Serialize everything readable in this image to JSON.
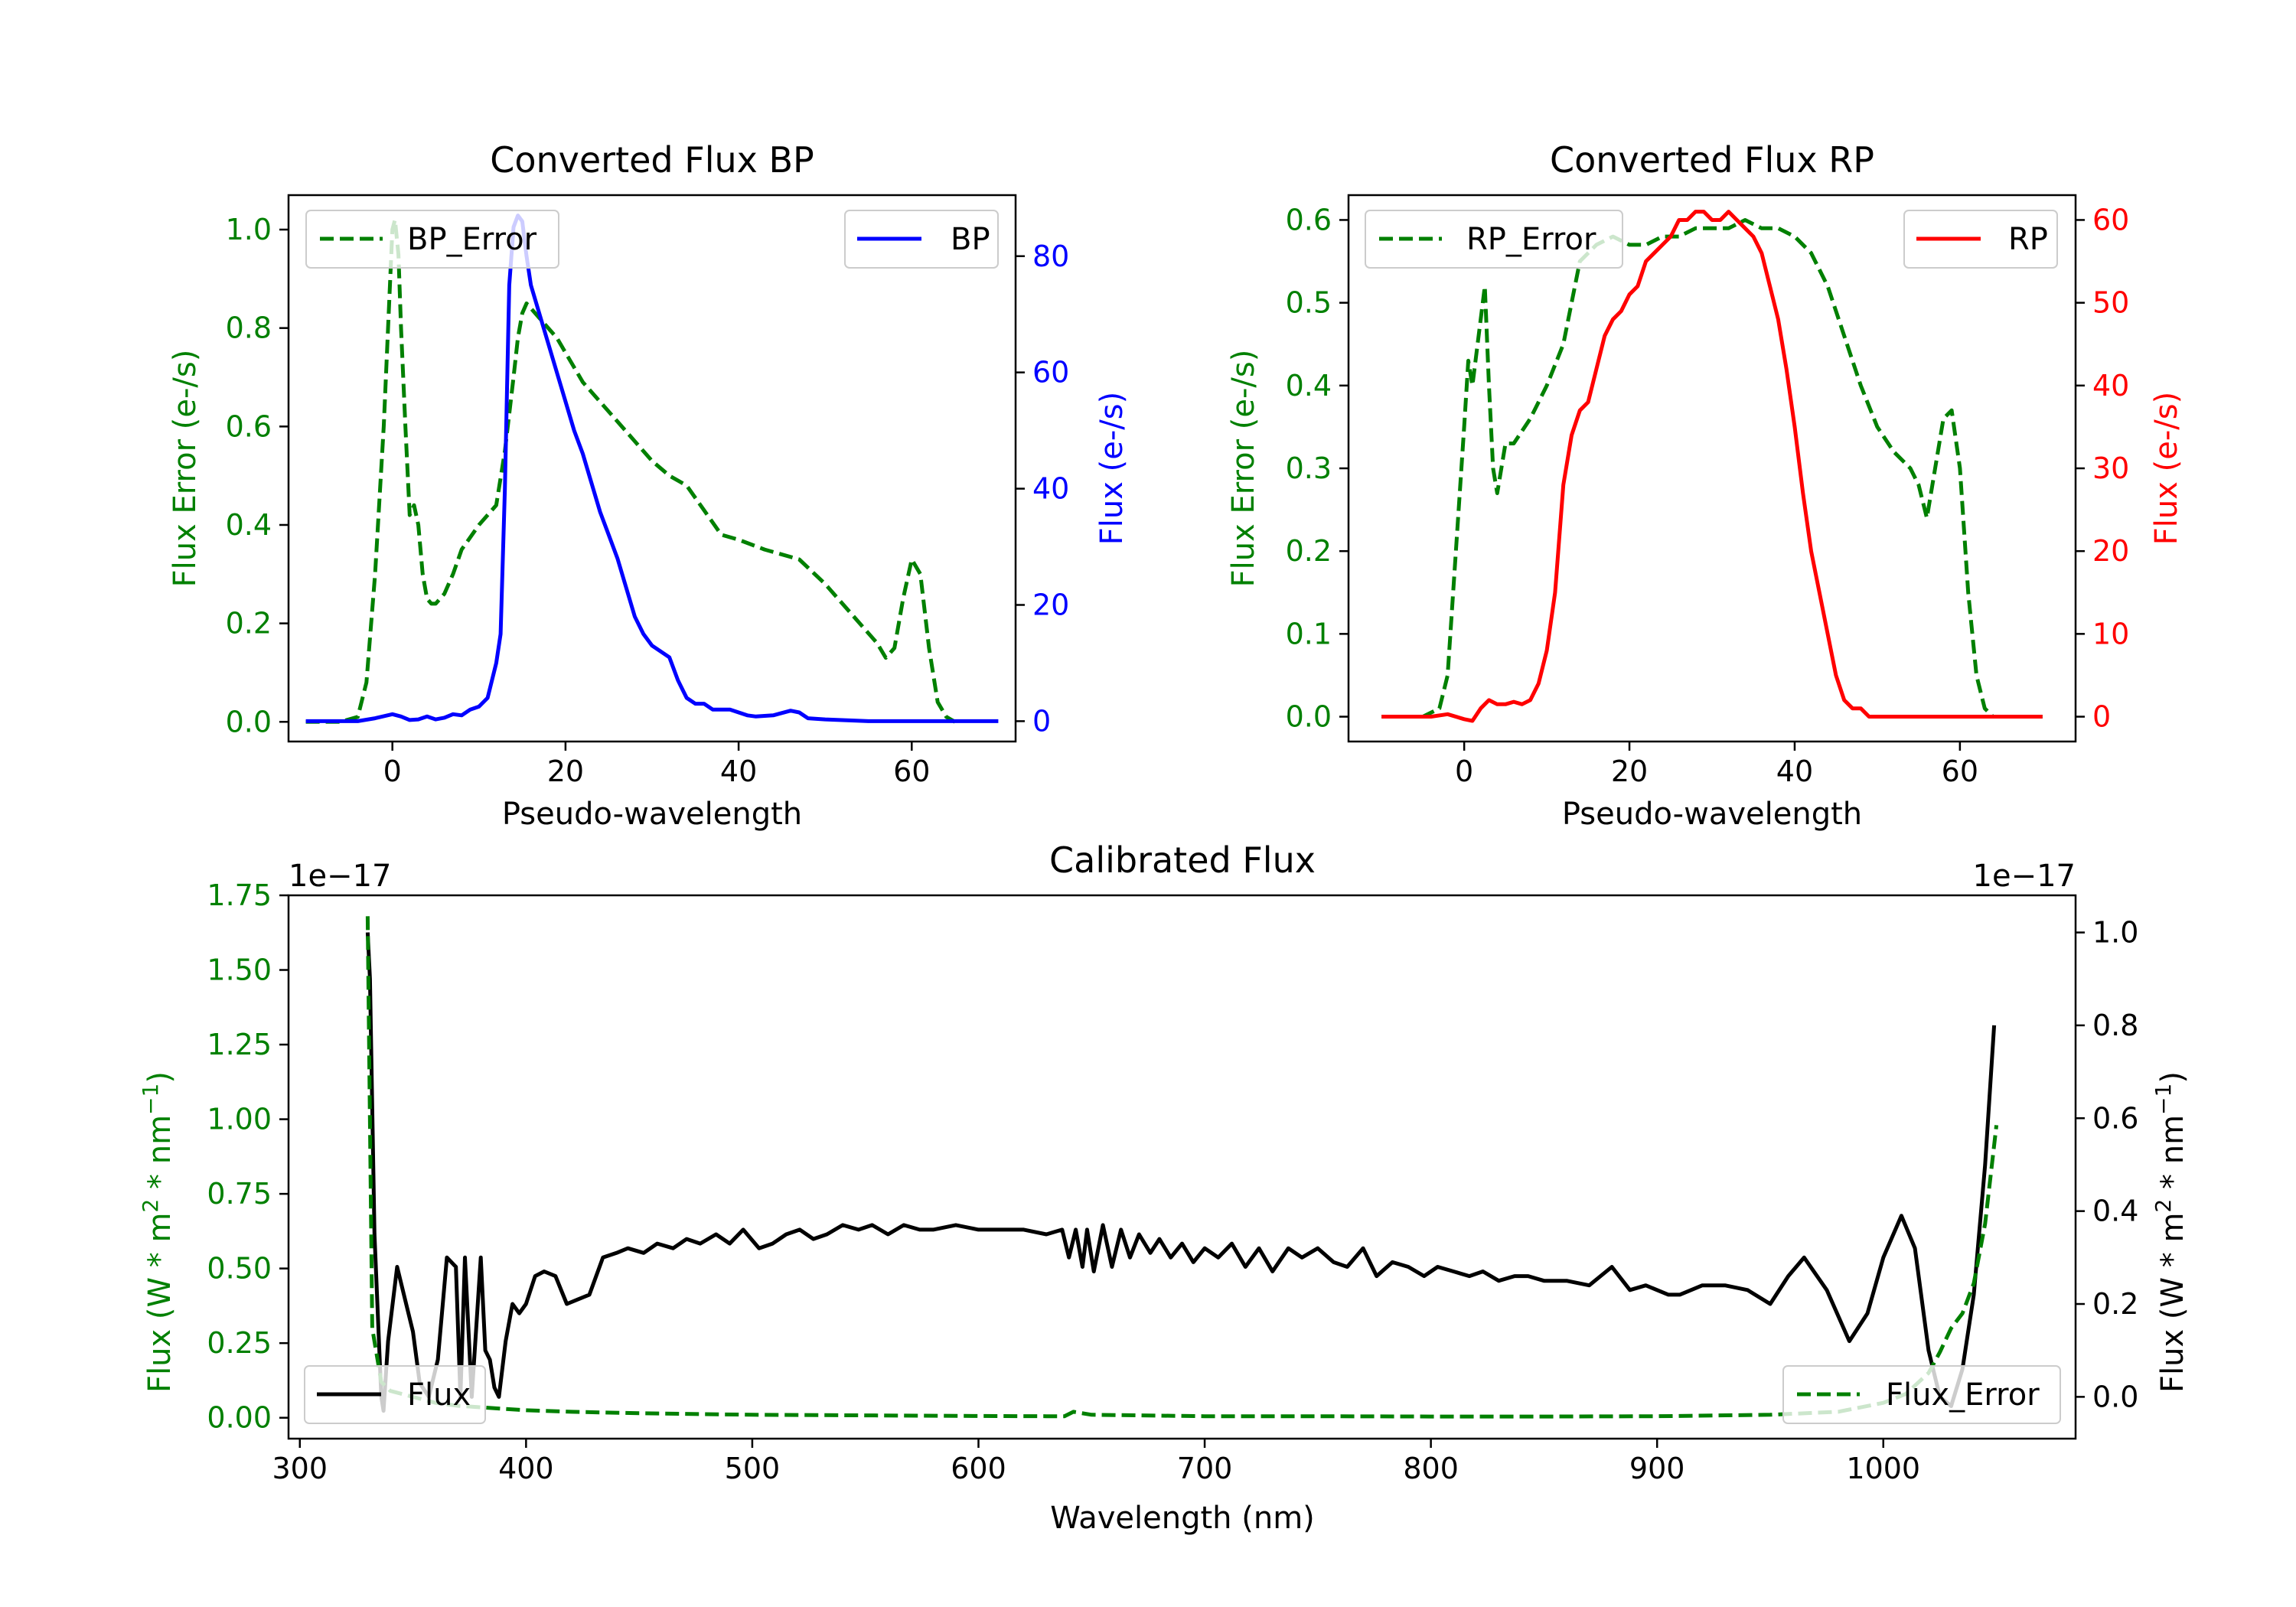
{
  "chart_data": [
    {
      "type": "line",
      "title": "Converted Flux BP",
      "xlabel": "Pseudo-wavelength",
      "ylabel_left": "Flux Error (e-/s)",
      "ylabel_right": "Flux (e-/s)",
      "xlim": [
        -12,
        72
      ],
      "ylim_left": [
        -0.04,
        1.07
      ],
      "ylim_right": [
        -3.5,
        90.5
      ],
      "xticks": [
        0,
        20,
        40,
        60
      ],
      "yticks_left": [
        0.0,
        0.2,
        0.4,
        0.6,
        0.8,
        1.0
      ],
      "yticks_right": [
        0,
        20,
        40,
        60,
        80
      ],
      "legend_left": "top-left",
      "legend_right": "top-right",
      "series": [
        {
          "name": "BP_Error",
          "axis": "left",
          "color": "#008000",
          "style": "dashed",
          "x": [
            -10,
            -6,
            -4,
            -3,
            -2,
            -1,
            0,
            0.3,
            0.7,
            1,
            1.5,
            2,
            2.5,
            3,
            3.5,
            4,
            4.5,
            5,
            6,
            7,
            8,
            10,
            12,
            13,
            14,
            14.5,
            15,
            15.5,
            16,
            17,
            18,
            19,
            20,
            22,
            25,
            28,
            30,
            32,
            34,
            36,
            38,
            40,
            43,
            47,
            50,
            53,
            56,
            57,
            58,
            59,
            60,
            61,
            62,
            63,
            64,
            65
          ],
          "y": [
            0,
            0,
            0.01,
            0.08,
            0.3,
            0.6,
            1.0,
            1.02,
            0.95,
            0.8,
            0.6,
            0.42,
            0.44,
            0.4,
            0.3,
            0.25,
            0.24,
            0.24,
            0.26,
            0.3,
            0.35,
            0.4,
            0.44,
            0.55,
            0.7,
            0.78,
            0.83,
            0.85,
            0.84,
            0.82,
            0.8,
            0.78,
            0.75,
            0.69,
            0.63,
            0.57,
            0.53,
            0.5,
            0.48,
            0.43,
            0.38,
            0.37,
            0.35,
            0.33,
            0.28,
            0.22,
            0.16,
            0.13,
            0.15,
            0.25,
            0.33,
            0.3,
            0.15,
            0.04,
            0.01,
            0.0
          ]
        },
        {
          "name": "BP",
          "axis": "right",
          "color": "#0000ff",
          "style": "solid",
          "x": [
            -10,
            -4,
            -2,
            0,
            1,
            2,
            3,
            4,
            5,
            6,
            7,
            8,
            9,
            10,
            11,
            12,
            12.5,
            13,
            13.5,
            14,
            14.5,
            15,
            15.5,
            16,
            17,
            18,
            19,
            20,
            21,
            22,
            23,
            24,
            25,
            26,
            27,
            28,
            29,
            30,
            31,
            32,
            33,
            34,
            35,
            36,
            37,
            38,
            39,
            40,
            41,
            42,
            44,
            46,
            47,
            48,
            50,
            55,
            60,
            65,
            70
          ],
          "y": [
            0,
            0,
            0.5,
            1.2,
            0.8,
            0.2,
            0.3,
            0.8,
            0.3,
            0.6,
            1.2,
            1.0,
            2.0,
            2.5,
            4,
            10,
            15,
            40,
            75,
            85,
            87,
            86,
            80,
            75,
            70,
            65,
            60,
            55,
            50,
            46,
            41,
            36,
            32,
            28,
            23,
            18,
            15,
            13,
            12,
            11,
            7,
            4,
            3,
            3,
            2,
            2,
            2,
            1.5,
            1,
            0.8,
            1,
            1.8,
            1.5,
            0.5,
            0.3,
            0,
            0,
            0,
            0
          ]
        }
      ]
    },
    {
      "type": "line",
      "title": "Converted Flux RP",
      "xlabel": "Pseudo-wavelength",
      "ylabel_left": "Flux Error (e-/s)",
      "ylabel_right": "Flux (e-/s)",
      "xlim": [
        -14,
        74
      ],
      "ylim_left": [
        -0.03,
        0.63
      ],
      "ylim_right": [
        -3,
        63
      ],
      "xticks": [
        0,
        20,
        40,
        60
      ],
      "yticks_left": [
        0.0,
        0.1,
        0.2,
        0.3,
        0.4,
        0.5,
        0.6
      ],
      "yticks_right": [
        0,
        10,
        20,
        30,
        40,
        50,
        60
      ],
      "legend_left": "top-left",
      "legend_right": "top-right",
      "series": [
        {
          "name": "RP_Error",
          "axis": "left",
          "color": "#008000",
          "style": "dashed",
          "x": [
            -10,
            -5,
            -3,
            -2,
            -1,
            0,
            0.5,
            1,
            1.5,
            2,
            2.5,
            3,
            3.5,
            4,
            5,
            6,
            8,
            10,
            12,
            14,
            16,
            18,
            20,
            22,
            24,
            26,
            28,
            30,
            32,
            34,
            36,
            38,
            40,
            42,
            44,
            46,
            48,
            50,
            52,
            54,
            55,
            56,
            57,
            58,
            59,
            60,
            61,
            62,
            63,
            64,
            70
          ],
          "y": [
            0,
            0,
            0.01,
            0.05,
            0.2,
            0.35,
            0.43,
            0.4,
            0.44,
            0.48,
            0.52,
            0.4,
            0.3,
            0.27,
            0.33,
            0.33,
            0.36,
            0.4,
            0.45,
            0.55,
            0.57,
            0.58,
            0.57,
            0.57,
            0.58,
            0.58,
            0.59,
            0.59,
            0.59,
            0.6,
            0.59,
            0.59,
            0.58,
            0.56,
            0.52,
            0.46,
            0.4,
            0.35,
            0.32,
            0.3,
            0.28,
            0.24,
            0.3,
            0.36,
            0.37,
            0.3,
            0.15,
            0.05,
            0.01,
            0,
            0
          ]
        },
        {
          "name": "RP",
          "axis": "right",
          "color": "#ff0000",
          "style": "solid",
          "x": [
            -10,
            -4,
            -2,
            0,
            1,
            2,
            3,
            4,
            5,
            6,
            7,
            8,
            9,
            10,
            11,
            12,
            13,
            14,
            15,
            16,
            17,
            18,
            19,
            20,
            21,
            22,
            23,
            24,
            25,
            26,
            27,
            28,
            29,
            30,
            31,
            32,
            33,
            34,
            35,
            36,
            37,
            38,
            39,
            40,
            41,
            42,
            43,
            44,
            45,
            46,
            47,
            48,
            49,
            50,
            51,
            52,
            53,
            54,
            55,
            56,
            57,
            58,
            59,
            60,
            62,
            65,
            70
          ],
          "y": [
            0,
            0,
            0.3,
            -0.3,
            -0.5,
            1,
            2,
            1.5,
            1.5,
            1.8,
            1.5,
            2,
            4,
            8,
            15,
            28,
            34,
            37,
            38,
            42,
            46,
            48,
            49,
            51,
            52,
            55,
            56,
            57,
            58,
            60,
            60,
            61,
            61,
            60,
            60,
            61,
            60,
            59,
            58,
            56,
            52,
            48,
            42,
            35,
            27,
            20,
            15,
            10,
            5,
            2,
            1,
            1,
            0,
            0,
            0,
            0,
            0,
            0,
            0,
            0,
            0,
            0,
            0,
            0,
            0,
            0,
            0
          ]
        }
      ]
    },
    {
      "type": "line",
      "title": "Calibrated Flux",
      "xlabel": "Wavelength (nm)",
      "ylabel_left": "Flux (W * m",
      "ylabel_right": "Flux (W * m",
      "ylabel_mid": " * nm",
      "ylabel_sup2": "2",
      "ylabel_supm1": "−1",
      "ylabel_close": ")",
      "offset_left": "1e−17",
      "offset_right": "1e−17",
      "xlim": [
        295,
        1085
      ],
      "ylim_left": [
        -0.07,
        1.75
      ],
      "ylim_right": [
        -0.09,
        1.08
      ],
      "xticks": [
        300,
        400,
        500,
        600,
        700,
        800,
        900,
        1000
      ],
      "yticks_left": [
        0.0,
        0.25,
        0.5,
        0.75,
        1.0,
        1.25,
        1.5,
        1.75
      ],
      "yticks_right": [
        0.0,
        0.2,
        0.4,
        0.6,
        0.8,
        1.0
      ],
      "legend_left": "bottom-left",
      "legend_right": "bottom-right",
      "series": [
        {
          "name": "Flux",
          "axis": "right",
          "color": "#000000",
          "style": "solid",
          "x": [
            330,
            331,
            333,
            336,
            337,
            339,
            343,
            347,
            350,
            353,
            357,
            361,
            365,
            369,
            371,
            373,
            376,
            380,
            382,
            384,
            386,
            388,
            391,
            394,
            397,
            400,
            404,
            408,
            413,
            418,
            423,
            428,
            434,
            440,
            445,
            452,
            458,
            465,
            471,
            477,
            484,
            490,
            496,
            503,
            509,
            515,
            521,
            527,
            533,
            540,
            547,
            553,
            560,
            567,
            574,
            580,
            590,
            600,
            610,
            620,
            630,
            637,
            640,
            643,
            646,
            648,
            651,
            655,
            659,
            663,
            667,
            671,
            676,
            680,
            685,
            690,
            695,
            700,
            706,
            712,
            718,
            724,
            730,
            737,
            743,
            750,
            757,
            763,
            770,
            776,
            783,
            790,
            797,
            803,
            810,
            817,
            823,
            830,
            837,
            843,
            850,
            860,
            870,
            880,
            888,
            895,
            905,
            910,
            920,
            930,
            940,
            950,
            958,
            965,
            975,
            985,
            993,
            1000,
            1008,
            1014,
            1020,
            1025,
            1030,
            1035,
            1040,
            1045,
            1049
          ],
          "y": [
            1.0,
            0.9,
            0.35,
            0.0,
            -0.03,
            0.12,
            0.28,
            0.2,
            0.14,
            0.03,
            0.0,
            0.08,
            0.3,
            0.28,
            0.0,
            0.3,
            0.0,
            0.3,
            0.1,
            0.08,
            0.02,
            0.0,
            0.12,
            0.2,
            0.18,
            0.2,
            0.26,
            0.27,
            0.26,
            0.2,
            0.21,
            0.22,
            0.3,
            0.31,
            0.32,
            0.31,
            0.33,
            0.32,
            0.34,
            0.33,
            0.35,
            0.33,
            0.36,
            0.32,
            0.33,
            0.35,
            0.36,
            0.34,
            0.35,
            0.37,
            0.36,
            0.37,
            0.35,
            0.37,
            0.36,
            0.36,
            0.37,
            0.36,
            0.36,
            0.36,
            0.35,
            0.36,
            0.3,
            0.36,
            0.28,
            0.36,
            0.27,
            0.37,
            0.28,
            0.36,
            0.3,
            0.35,
            0.31,
            0.34,
            0.3,
            0.33,
            0.29,
            0.32,
            0.3,
            0.33,
            0.28,
            0.32,
            0.27,
            0.32,
            0.3,
            0.32,
            0.29,
            0.28,
            0.32,
            0.26,
            0.29,
            0.28,
            0.26,
            0.28,
            0.27,
            0.26,
            0.27,
            0.25,
            0.26,
            0.26,
            0.25,
            0.25,
            0.24,
            0.28,
            0.23,
            0.24,
            0.22,
            0.22,
            0.24,
            0.24,
            0.23,
            0.2,
            0.26,
            0.3,
            0.23,
            0.12,
            0.18,
            0.3,
            0.39,
            0.32,
            0.1,
            0.0,
            -0.02,
            0.06,
            0.22,
            0.5,
            0.8
          ]
        },
        {
          "name": "Flux_Error",
          "axis": "left",
          "color": "#008000",
          "style": "dashed",
          "x": [
            330,
            332,
            336,
            340,
            345,
            350,
            355,
            360,
            370,
            380,
            390,
            400,
            420,
            450,
            500,
            550,
            600,
            630,
            638,
            642,
            650,
            700,
            750,
            800,
            850,
            900,
            950,
            980,
            1000,
            1010,
            1020,
            1025,
            1030,
            1035,
            1040,
            1045,
            1050
          ],
          "y": [
            1.68,
            0.3,
            0.12,
            0.09,
            0.08,
            0.07,
            0.06,
            0.05,
            0.04,
            0.035,
            0.03,
            0.025,
            0.02,
            0.015,
            0.01,
            0.008,
            0.006,
            0.005,
            0.005,
            0.02,
            0.01,
            0.005,
            0.005,
            0.004,
            0.004,
            0.005,
            0.01,
            0.02,
            0.05,
            0.08,
            0.15,
            0.22,
            0.3,
            0.35,
            0.45,
            0.65,
            0.98
          ]
        }
      ]
    }
  ]
}
